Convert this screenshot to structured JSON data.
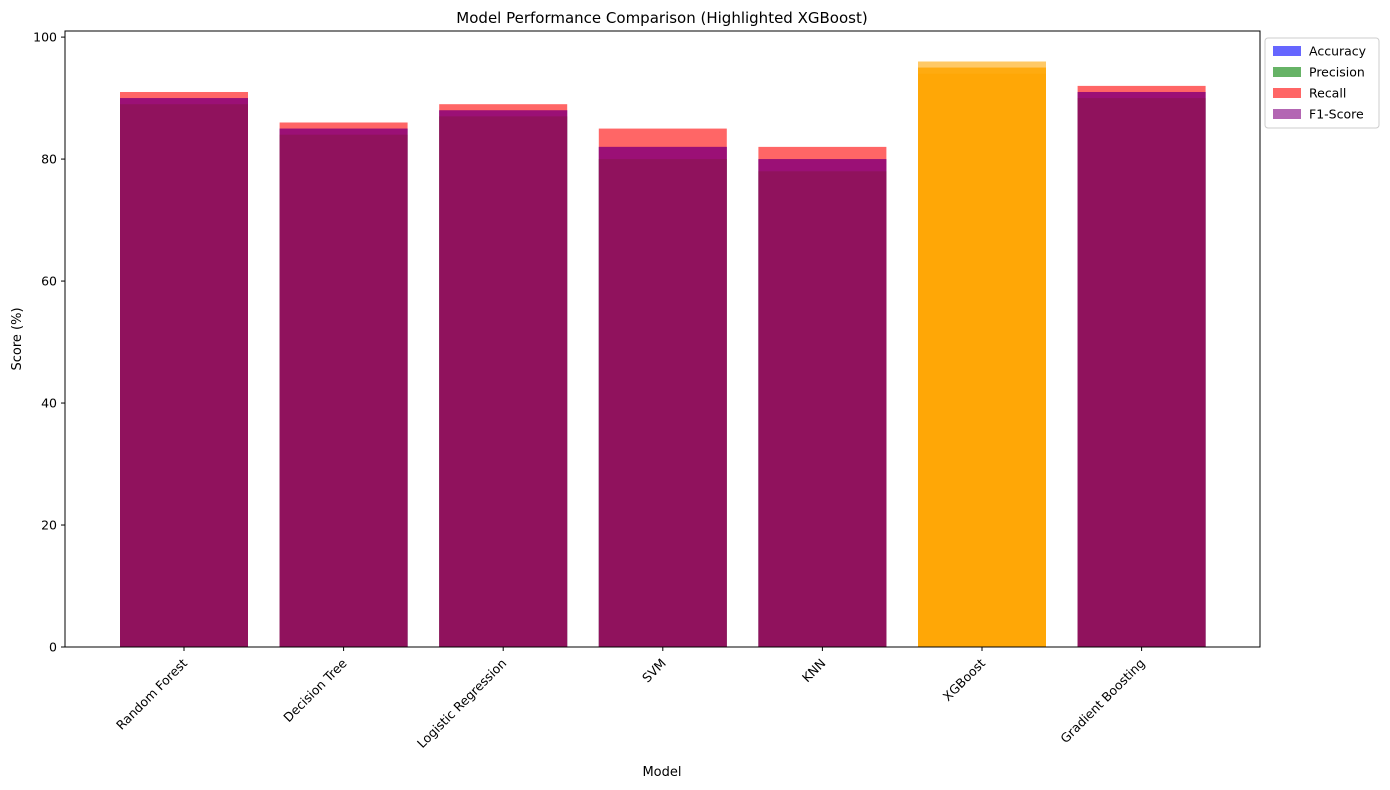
{
  "chart_data": {
    "type": "bar",
    "title": "Model Performance Comparison (Highlighted XGBoost)",
    "xlabel": "Model",
    "ylabel": "Score (%)",
    "ylim": [
      0,
      101
    ],
    "yticks": [
      0,
      20,
      40,
      60,
      80,
      100
    ],
    "categories": [
      "Random Forest",
      "Decision Tree",
      "Logistic Regression",
      "SVM",
      "KNN",
      "XGBoost",
      "Gradient Boosting"
    ],
    "highlight": {
      "category": "XGBoost",
      "color": "#FFA500"
    },
    "series": [
      {
        "name": "Accuracy",
        "color": "#0000FF",
        "values": [
          90,
          85,
          88,
          82,
          80,
          95,
          91
        ]
      },
      {
        "name": "Precision",
        "color": "#008000",
        "values": [
          89,
          84,
          87,
          80,
          78,
          94,
          90
        ]
      },
      {
        "name": "Recall",
        "color": "#FF0000",
        "values": [
          91,
          86,
          89,
          85,
          82,
          96,
          92
        ]
      },
      {
        "name": "F1-Score",
        "color": "#800080",
        "values": [
          90,
          85,
          88,
          82,
          80,
          95,
          91
        ]
      }
    ],
    "legend_position": "outside-top-right",
    "grid": false
  }
}
